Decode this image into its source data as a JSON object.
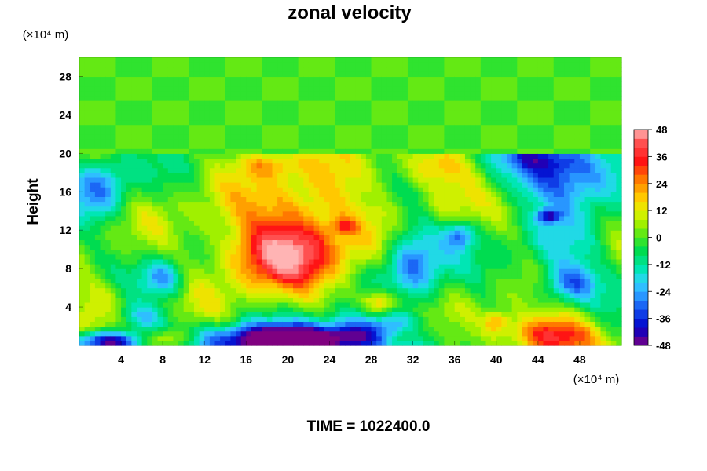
{
  "chart_data": {
    "type": "heatmap",
    "title": "zonal velocity",
    "ylabel": "Height",
    "y_unit_label": "(×10⁴ m)",
    "x_unit_label": "(×10⁴ m)",
    "footer": "TIME = 1022400.0",
    "xlim": [
      0,
      52
    ],
    "ylim": [
      0,
      30
    ],
    "x_ticks": [
      "4",
      "8",
      "12",
      "16",
      "20",
      "24",
      "28",
      "32",
      "36",
      "40",
      "44",
      "48"
    ],
    "y_ticks": [
      "4",
      "8",
      "12",
      "16",
      "20",
      "24",
      "28"
    ],
    "colorbar": {
      "min": -48,
      "max": 48,
      "step": 4,
      "tick_labels": [
        "48",
        "36",
        "24",
        "12",
        "0",
        "-12",
        "-24",
        "-36",
        "-48"
      ],
      "colors": [
        "#800080",
        "#0000c8",
        "#1450f0",
        "#2896ff",
        "#32d2ff",
        "#00e6b4",
        "#00dc50",
        "#46e61e",
        "#a0f000",
        "#e6f000",
        "#ffc800",
        "#ff7800",
        "#ff1414",
        "#ff5050",
        "#ffb4b4"
      ],
      "color_positions": [
        -48,
        -40,
        -32,
        -26,
        -20,
        -14,
        -6,
        0,
        6,
        12,
        18,
        26,
        34,
        42,
        48
      ]
    },
    "background_value_above": 0,
    "boundary_height": 20,
    "features": [
      {
        "x": 19,
        "y": 9.5,
        "sx": 3.2,
        "sy": 2.2,
        "amp": 24
      },
      {
        "x": 20,
        "y": 11,
        "sx": 5.5,
        "sy": 4,
        "amp": 22
      },
      {
        "x": 23,
        "y": 15,
        "sx": 3,
        "sy": 3.5,
        "amp": 12
      },
      {
        "x": 25.5,
        "y": 12.5,
        "sx": 0.8,
        "sy": 0.6,
        "amp": 18
      },
      {
        "x": 29,
        "y": 4.5,
        "sx": 1.3,
        "sy": 1,
        "amp": 30
      },
      {
        "x": 31,
        "y": 1,
        "sx": 1.5,
        "sy": 0.8,
        "amp": 20
      },
      {
        "x": 18,
        "y": 19,
        "sx": 2,
        "sy": 1,
        "amp": 18
      },
      {
        "x": 34,
        "y": 18.5,
        "sx": 2.5,
        "sy": 1.5,
        "amp": 22
      },
      {
        "x": 35,
        "y": 15,
        "sx": 2,
        "sy": 1.5,
        "amp": 10
      },
      {
        "x": 45,
        "y": 1,
        "sx": 3,
        "sy": 1.5,
        "amp": 42
      },
      {
        "x": 8,
        "y": 0.5,
        "sx": 2,
        "sy": 0.8,
        "amp": 30
      },
      {
        "x": 40,
        "y": 2.5,
        "sx": 0.8,
        "sy": 0.8,
        "amp": 20
      },
      {
        "x": 2,
        "y": 5,
        "sx": 2,
        "sy": 2,
        "amp": 12
      },
      {
        "x": 20,
        "y": 0.5,
        "sx": 6,
        "sy": 1.2,
        "amp": -62
      },
      {
        "x": 3,
        "y": 0.4,
        "sx": 2.5,
        "sy": 0.8,
        "amp": -55
      },
      {
        "x": 28,
        "y": 1.5,
        "sx": 4,
        "sy": 1.5,
        "amp": -25
      },
      {
        "x": 47,
        "y": 18,
        "sx": 4,
        "sy": 2.5,
        "amp": -38
      },
      {
        "x": 45,
        "y": 13.5,
        "sx": 0.8,
        "sy": 0.5,
        "amp": -30
      },
      {
        "x": 47,
        "y": 6.5,
        "sx": 2,
        "sy": 1.5,
        "amp": -32
      },
      {
        "x": 32,
        "y": 9,
        "sx": 2,
        "sy": 3,
        "amp": -32
      },
      {
        "x": 36.5,
        "y": 11.5,
        "sx": 1,
        "sy": 1,
        "amp": -24
      },
      {
        "x": 2,
        "y": 16.5,
        "sx": 2,
        "sy": 2.5,
        "amp": -25
      },
      {
        "x": 8,
        "y": 7,
        "sx": 1.5,
        "sy": 1.5,
        "amp": -25
      },
      {
        "x": 44,
        "y": 19.5,
        "sx": 3,
        "sy": 1,
        "amp": -15
      },
      {
        "x": 46,
        "y": 10,
        "sx": 3,
        "sy": 2,
        "amp": -12
      },
      {
        "x": 6,
        "y": 3,
        "sx": 2,
        "sy": 1,
        "amp": -18
      }
    ]
  }
}
